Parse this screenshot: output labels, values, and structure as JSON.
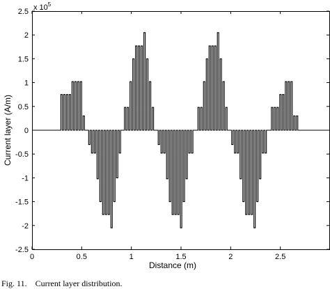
{
  "chart_data": {
    "type": "line",
    "title": "",
    "xlabel": "Distance (m)",
    "ylabel": "Current layer (A/m)",
    "xlim": [
      0,
      3
    ],
    "ylim": [
      -2.5,
      2.5
    ],
    "x_ticks": [
      0,
      0.5,
      1,
      1.5,
      2,
      2.5
    ],
    "x_tick_labels": [
      "0",
      "0.5",
      "1",
      "1.5",
      "2",
      "2.5"
    ],
    "y_ticks": [
      2.5,
      2,
      1.5,
      1,
      0.5,
      0,
      -0.5,
      -1,
      -1.5,
      -2,
      -2.5
    ],
    "y_tick_labels": [
      "2.5",
      "2",
      "1.5",
      "1",
      "0.5",
      "0",
      "-0.5",
      "-1",
      "-1.5",
      "-2",
      "-2.5"
    ],
    "y_multiplier_base": "x 10",
    "y_multiplier_exponent": "5",
    "grid": false,
    "line_color": "#000000",
    "pulse_width": 0.014,
    "pulse_groups": [
      {
        "x": [
          0.29,
          0.318,
          0.346,
          0.374,
          0.402,
          0.43,
          0.458,
          0.486,
          0.514
        ],
        "y": [
          0.75,
          0.75,
          0.75,
          0.75,
          1.02,
          1.02,
          1.02,
          1.02,
          0.3
        ]
      },
      {
        "x": [
          0.57,
          0.598,
          0.626,
          0.654,
          0.682,
          0.71,
          0.738,
          0.766,
          0.794,
          0.822,
          0.85,
          0.878
        ],
        "y": [
          -0.3,
          -0.48,
          -0.48,
          -1.02,
          -1.5,
          -1.77,
          -1.77,
          -1.77,
          -2.05,
          -1.5,
          -1.0,
          -0.48
        ]
      },
      {
        "x": [
          0.93,
          0.958,
          0.986,
          1.014,
          1.042,
          1.07,
          1.098,
          1.126,
          1.154,
          1.182,
          1.21
        ],
        "y": [
          0.48,
          0.48,
          1.02,
          1.5,
          1.77,
          1.77,
          1.77,
          2.05,
          1.5,
          1.02,
          0.48
        ]
      },
      {
        "x": [
          1.27,
          1.298,
          1.326,
          1.354,
          1.382,
          1.41,
          1.438,
          1.466,
          1.494,
          1.522,
          1.55,
          1.578,
          1.606
        ],
        "y": [
          -0.3,
          -0.48,
          -0.48,
          -1.02,
          -1.5,
          -1.77,
          -1.77,
          -1.77,
          -2.05,
          -1.5,
          -1.02,
          -0.48,
          -0.48
        ]
      },
      {
        "x": [
          1.67,
          1.698,
          1.726,
          1.754,
          1.782,
          1.81,
          1.838,
          1.866,
          1.894,
          1.922,
          1.95
        ],
        "y": [
          0.48,
          0.48,
          1.02,
          1.5,
          1.77,
          1.77,
          1.77,
          2.05,
          1.5,
          1.02,
          0.48
        ]
      },
      {
        "x": [
          2.01,
          2.038,
          2.066,
          2.094,
          2.122,
          2.15,
          2.178,
          2.206,
          2.234,
          2.262,
          2.29,
          2.318,
          2.346
        ],
        "y": [
          -0.3,
          -0.48,
          -0.48,
          -1.02,
          -1.5,
          -1.77,
          -1.77,
          -1.77,
          -2.05,
          -1.5,
          -1.02,
          -0.48,
          -0.48
        ]
      },
      {
        "x": [
          2.41,
          2.438,
          2.466,
          2.494,
          2.522,
          2.55,
          2.578,
          2.606,
          2.634,
          2.662
        ],
        "y": [
          0.48,
          0.48,
          0.48,
          0.75,
          0.75,
          1.02,
          1.02,
          1.02,
          0.3,
          0.3
        ]
      }
    ]
  },
  "caption": "Fig. 11.    Current layer distribution."
}
